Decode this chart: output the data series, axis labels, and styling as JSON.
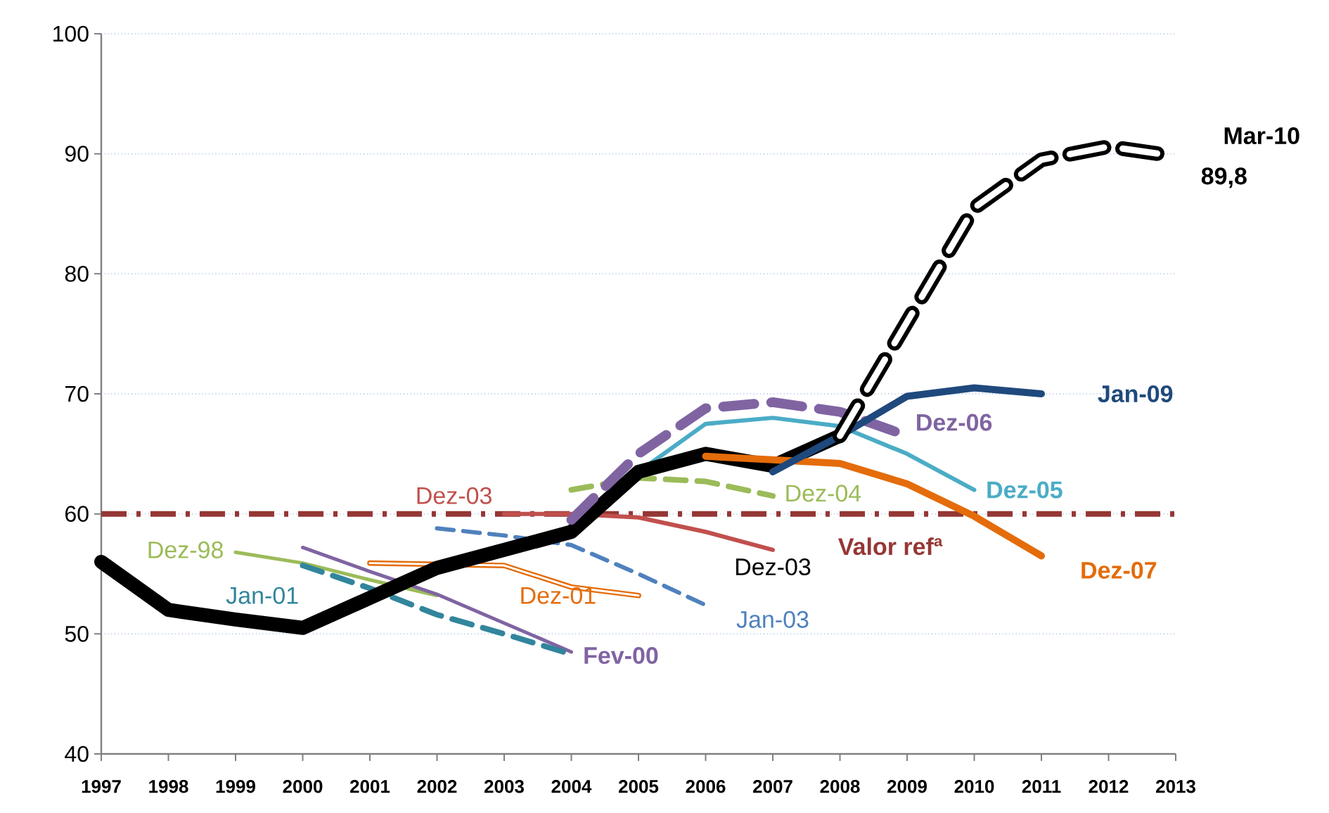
{
  "chart_data": {
    "type": "line",
    "xlim": [
      1997,
      2013
    ],
    "ylim": [
      40,
      100
    ],
    "xticks": [
      1997,
      1998,
      1999,
      2000,
      2001,
      2002,
      2003,
      2004,
      2005,
      2006,
      2007,
      2008,
      2009,
      2010,
      2011,
      2012,
      2013
    ],
    "yticks": [
      40,
      50,
      60,
      70,
      80,
      90,
      100
    ],
    "grid": "y",
    "ref_lines": [
      {
        "axis": "y",
        "value": 60,
        "label": "Valor refª",
        "color": "#953735",
        "line_style": "dashdot"
      }
    ],
    "annotations": [
      {
        "text": "Dez-03",
        "x": 2007,
        "y": 57
      }
    ],
    "series": [
      {
        "name": "Dez-98",
        "color": "#9bbb59",
        "line_style": "solid",
        "x": [
          1999,
          2000,
          2001,
          2002
        ],
        "values": [
          56.8,
          55.9,
          54.5,
          53.2
        ]
      },
      {
        "name": "Fev-00",
        "color": "#8064a2",
        "line_style": "solid",
        "x": [
          2000,
          2001,
          2002,
          2003,
          2004
        ],
        "values": [
          57.2,
          55.2,
          53.3,
          50.9,
          48.5
        ]
      },
      {
        "name": "Jan-01",
        "color": "#31859c",
        "line_style": "dashed",
        "x": [
          2000,
          2001,
          2002,
          2003,
          2004
        ],
        "values": [
          55.7,
          53.8,
          51.6,
          50.0,
          48.3
        ]
      },
      {
        "name": "Dez-01",
        "color": "#e46c0a",
        "line_style": "solid",
        "x": [
          2001,
          2002,
          2003,
          2004,
          2005
        ],
        "values": [
          55.9,
          55.8,
          55.7,
          53.9,
          53.2
        ]
      },
      {
        "name": "Jan-03",
        "color": "#4f81bd",
        "line_style": "dashed",
        "x": [
          2002,
          2003,
          2004,
          2005,
          2006
        ],
        "values": [
          58.8,
          58.2,
          57.4,
          55.0,
          52.4
        ]
      },
      {
        "name": "Dez-03",
        "color": "#c0504d",
        "line_style": "solid",
        "x": [
          2003,
          2004,
          2005,
          2006,
          2007
        ],
        "values": [
          60.0,
          60.0,
          59.7,
          58.5,
          57.0
        ]
      },
      {
        "name": "Dez-04",
        "color": "#9bbb59",
        "line_style": "dashed",
        "x": [
          2004,
          2005,
          2006,
          2007
        ],
        "values": [
          62.0,
          63.0,
          62.7,
          61.5
        ]
      },
      {
        "name": "Dez-05",
        "color": "#4bacc6",
        "line_style": "solid",
        "x": [
          2005,
          2006,
          2007,
          2008,
          2009,
          2010
        ],
        "values": [
          63.5,
          67.5,
          68.0,
          67.3,
          65.0,
          62.0
        ]
      },
      {
        "color": "#000000",
        "line_style": "solid",
        "x": [
          1997,
          1998,
          1999,
          2000,
          2001,
          2002,
          2003,
          2004,
          2005,
          2006,
          2007,
          2008
        ],
        "values": [
          56.0,
          52.0,
          51.2,
          50.5,
          53.0,
          55.5,
          57.0,
          58.5,
          63.5,
          65.0,
          64.0,
          66.5
        ]
      },
      {
        "name": "Dez-06",
        "color": "#8064a2",
        "line_style": "dashed",
        "x": [
          2004,
          2005,
          2006,
          2007,
          2008,
          2009
        ],
        "values": [
          59.5,
          65.0,
          68.8,
          69.3,
          68.5,
          66.5
        ]
      },
      {
        "name": "Dez-07",
        "color": "#e46c0a",
        "line_style": "solid",
        "x": [
          2006,
          2007,
          2008,
          2009,
          2010,
          2011
        ],
        "values": [
          64.8,
          64.5,
          64.2,
          62.5,
          59.8,
          56.5
        ]
      },
      {
        "name": "Jan-09",
        "color": "#1f497d",
        "line_style": "solid",
        "x": [
          2007,
          2008,
          2009,
          2010,
          2011
        ],
        "values": [
          63.5,
          66.5,
          69.8,
          70.5,
          70.0
        ]
      },
      {
        "name": "Mar-10",
        "color": "#000000",
        "line_style": "dashed",
        "x": [
          2008,
          2009,
          2010,
          2011,
          2012,
          2013
        ],
        "values": [
          66.5,
          76.0,
          85.5,
          89.5,
          90.6,
          89.8
        ],
        "value_labels": [
          null,
          null,
          null,
          null,
          null,
          "89,8"
        ]
      }
    ]
  }
}
